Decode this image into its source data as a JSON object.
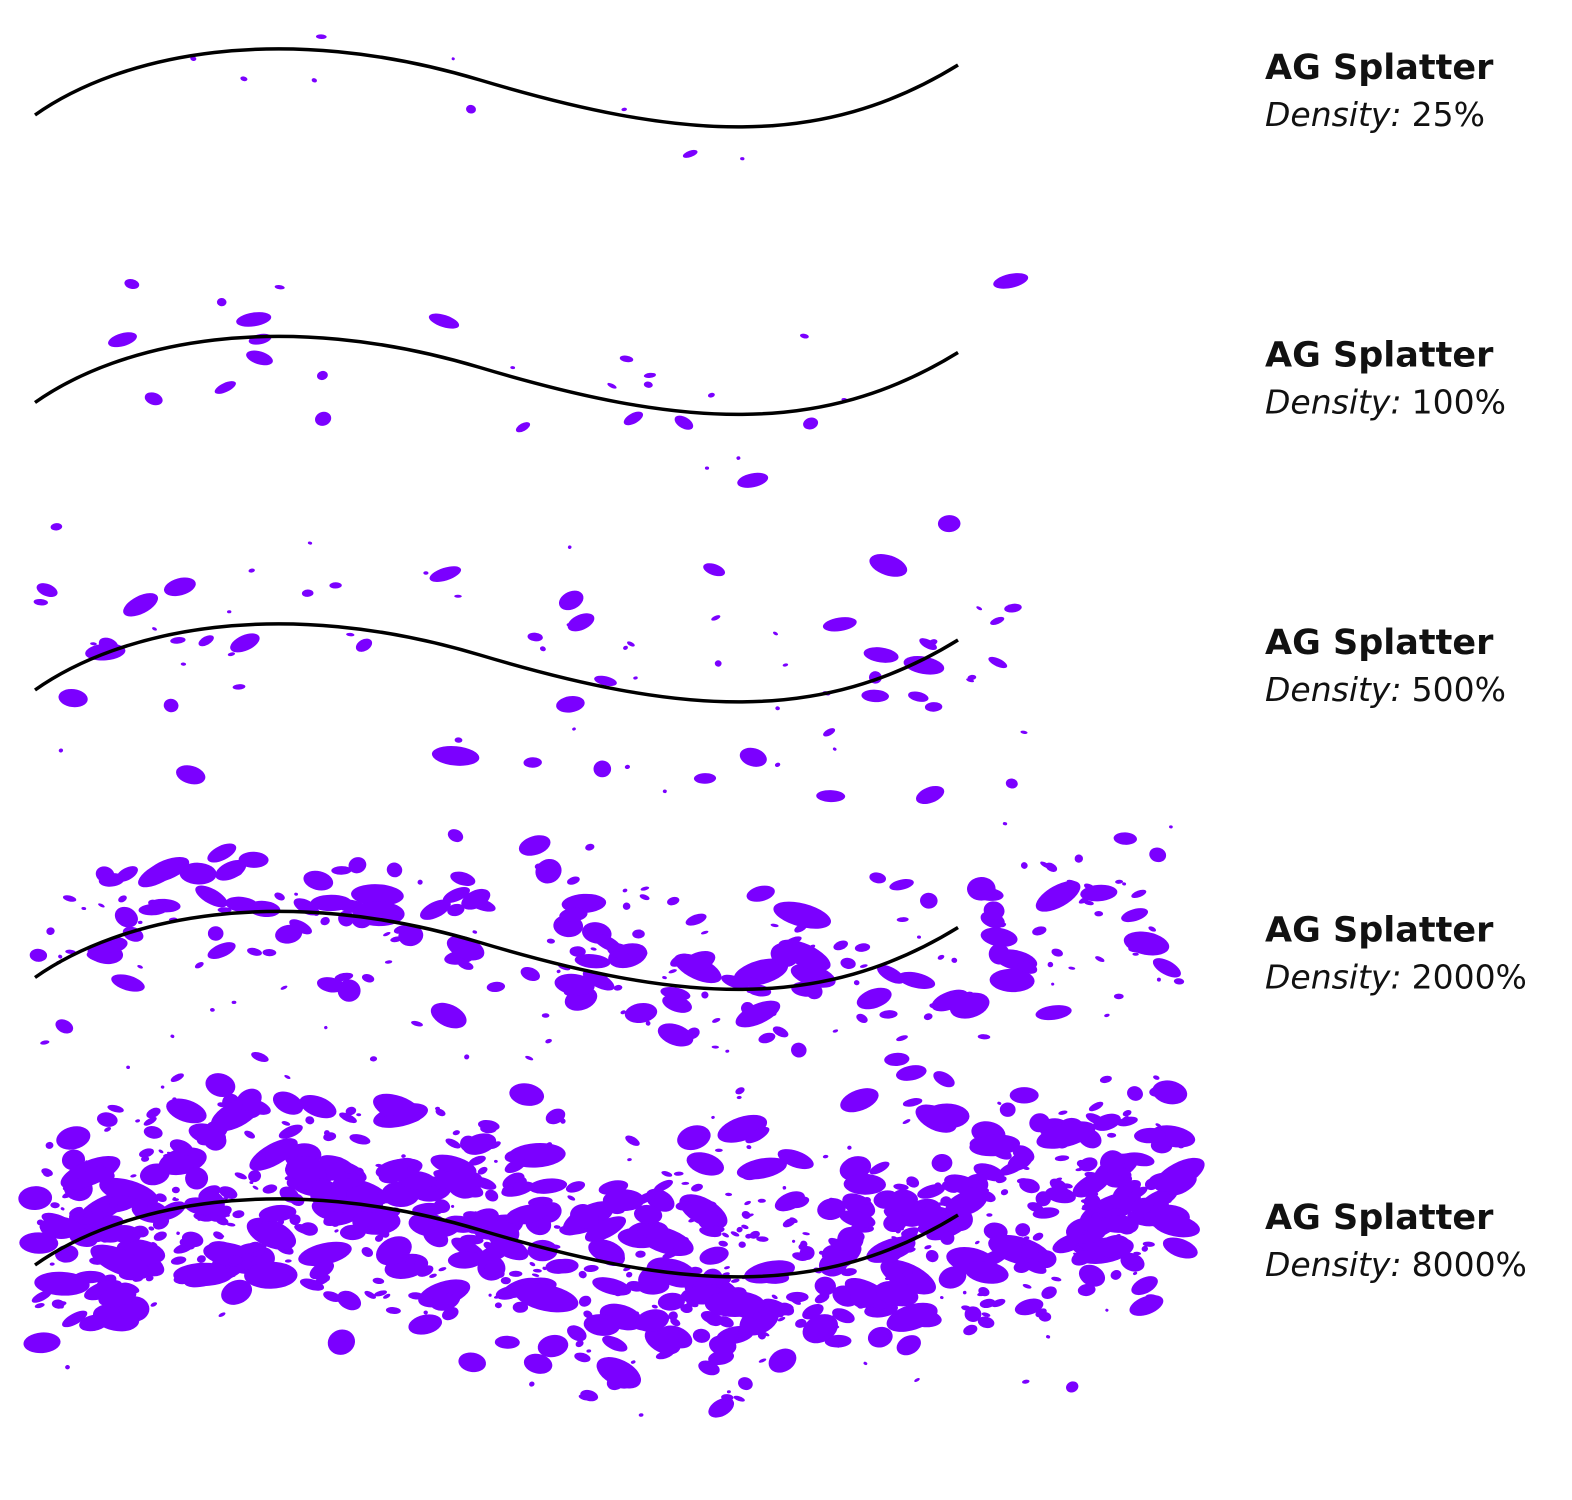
{
  "rows": [
    {
      "title": "AG Splatter",
      "density_label": "Density:",
      "density_value": "25%"
    },
    {
      "title": "AG Splatter",
      "density_label": "Density:",
      "density_value": "100%"
    },
    {
      "title": "AG Splatter",
      "density_label": "Density:",
      "density_value": "500%"
    },
    {
      "title": "AG Splatter",
      "density_label": "Density:",
      "density_value": "2000%"
    },
    {
      "title": "AG Splatter",
      "density_label": "Density:",
      "density_value": "8000%"
    }
  ]
}
